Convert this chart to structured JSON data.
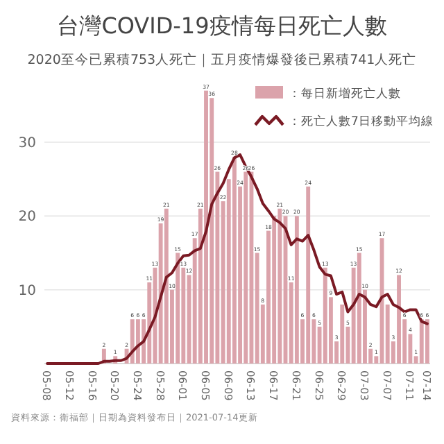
{
  "chart_data": {
    "type": "bar",
    "title": "台灣COVID-19疫情每日死亡人數",
    "subtitle": "2020至今已累積753人死亡｜五月疫情爆發後已累積741人死亡",
    "categories": [
      "05-08",
      null,
      null,
      null,
      "05-12",
      null,
      null,
      null,
      "05-16",
      null,
      null,
      null,
      "05-20",
      null,
      null,
      null,
      "05-24",
      null,
      null,
      null,
      "05-28",
      null,
      null,
      null,
      "06-01",
      null,
      null,
      null,
      "06-05",
      null,
      null,
      null,
      "06-09",
      null,
      null,
      null,
      "06-13",
      null,
      null,
      null,
      "06-17",
      null,
      null,
      null,
      "06-21",
      null,
      null,
      null,
      "06-25",
      null,
      null,
      null,
      "06-29",
      null,
      null,
      null,
      "07-03",
      null,
      null,
      null,
      "07-07",
      null,
      null,
      null,
      "07-11",
      null,
      null,
      "07-14"
    ],
    "series": [
      {
        "name": "：每日新增死亡人數",
        "color": "#dba3ab",
        "values": [
          0,
          0,
          0,
          0,
          0,
          0,
          0,
          0,
          0,
          0,
          2,
          0,
          1,
          0,
          2,
          6,
          6,
          6,
          11,
          13,
          19,
          21,
          10,
          15,
          13,
          12,
          17,
          21,
          37,
          36,
          26,
          22,
          25,
          28,
          24,
          26,
          26,
          15,
          8,
          18,
          20,
          21,
          20,
          11,
          20,
          6,
          24,
          6,
          5,
          13,
          9,
          3,
          8,
          5,
          13,
          15,
          10,
          2,
          1,
          17,
          8,
          3,
          12,
          6,
          4,
          1,
          6,
          6
        ],
        "value_labels": [
          null,
          null,
          null,
          null,
          null,
          null,
          null,
          null,
          null,
          null,
          "2",
          null,
          "1",
          null,
          "2",
          "6",
          "6",
          "6",
          "11",
          "13",
          "19",
          "21",
          "10",
          "15",
          "13",
          "12",
          "17",
          "21",
          "37",
          "36",
          "26",
          "22",
          null,
          "28",
          "24",
          "26",
          "26",
          "15",
          "8",
          "18",
          null,
          "21",
          "20",
          "11",
          "20",
          "6",
          "24",
          "6",
          "5",
          "13",
          "9",
          "3",
          null,
          "5",
          "13",
          "15",
          "10",
          "2",
          "1",
          "17",
          null,
          "3",
          "12",
          "6",
          "4",
          "1",
          "6",
          "6"
        ]
      },
      {
        "name": "：死亡人數7日移動平均線",
        "type": "line",
        "color": "#7a1a24",
        "values": [
          0,
          0,
          0,
          0,
          0,
          0,
          0,
          0,
          0,
          0,
          0.3,
          0.3,
          0.4,
          0.4,
          0.7,
          1.6,
          2.4,
          3.0,
          4.6,
          6.3,
          9.0,
          11.7,
          12.3,
          13.6,
          14.6,
          14.7,
          15.3,
          15.6,
          17.9,
          21.6,
          23.1,
          24.4,
          26.3,
          27.9,
          28.3,
          26.7,
          25.3,
          23.7,
          21.7,
          20.7,
          19.6,
          19.1,
          18.3,
          16.1,
          16.9,
          16.6,
          17.4,
          15.4,
          13.1,
          12.1,
          11.9,
          9.4,
          9.7,
          7.0,
          8.0,
          9.4,
          9.0,
          8.0,
          7.7,
          9.0,
          9.4,
          8.0,
          7.6,
          7.0,
          7.3,
          7.3,
          5.7,
          5.4
        ]
      }
    ],
    "ylim": [
      0,
      38
    ],
    "yticks": [
      10,
      20,
      30
    ],
    "grid": "y",
    "legend": "top right",
    "annotations": [
      "資料來源：衛福部｜日期為資料發布日｜2021-07-14更新"
    ]
  }
}
